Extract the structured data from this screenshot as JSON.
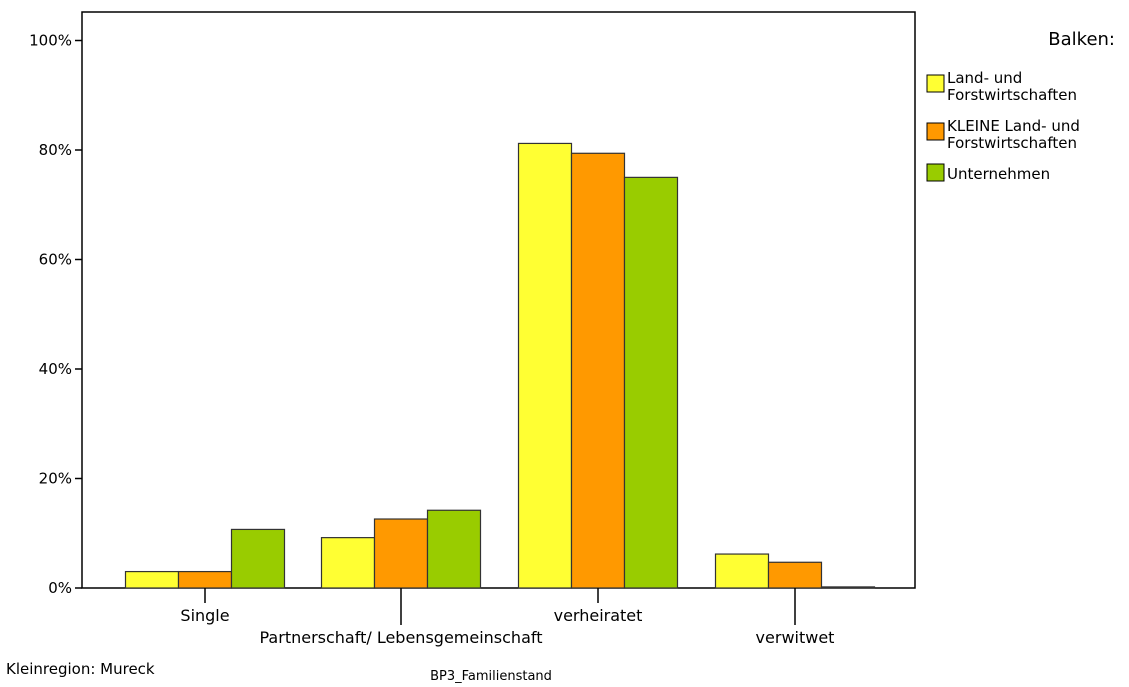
{
  "chart_data": {
    "type": "bar",
    "categories": [
      "Single",
      "Partnerschaft/ Lebensgemeinschaft",
      "verheiratet",
      "verwitwet"
    ],
    "series": [
      {
        "name": "Land- und Forstwirtschaften",
        "name_lines": [
          "Land- und",
          "Forstwirtschaften"
        ],
        "color": "#ffff33",
        "values": [
          3,
          9.2,
          81.2,
          6.2
        ]
      },
      {
        "name": "KLEINE Land- und Forstwirtschaften",
        "name_lines": [
          "KLEINE Land- und",
          "Forstwirtschaften"
        ],
        "color": "#ff9900",
        "values": [
          3,
          12.6,
          79.4,
          4.7
        ]
      },
      {
        "name": "Unternehmen",
        "name_lines": [
          "Unternehmen"
        ],
        "color": "#99cc00",
        "values": [
          10.7,
          14.2,
          75,
          0.2
        ]
      }
    ],
    "yticks": [
      "0%",
      "20%",
      "40%",
      "60%",
      "80%",
      "100%"
    ],
    "ylim": [
      0,
      105
    ],
    "xlabel": "BP3_Familienstand",
    "ylabel": "",
    "legend_title": "Balken:",
    "legend_position": "top-right",
    "grid": false,
    "footnote": "Kleinregion: Mureck"
  }
}
